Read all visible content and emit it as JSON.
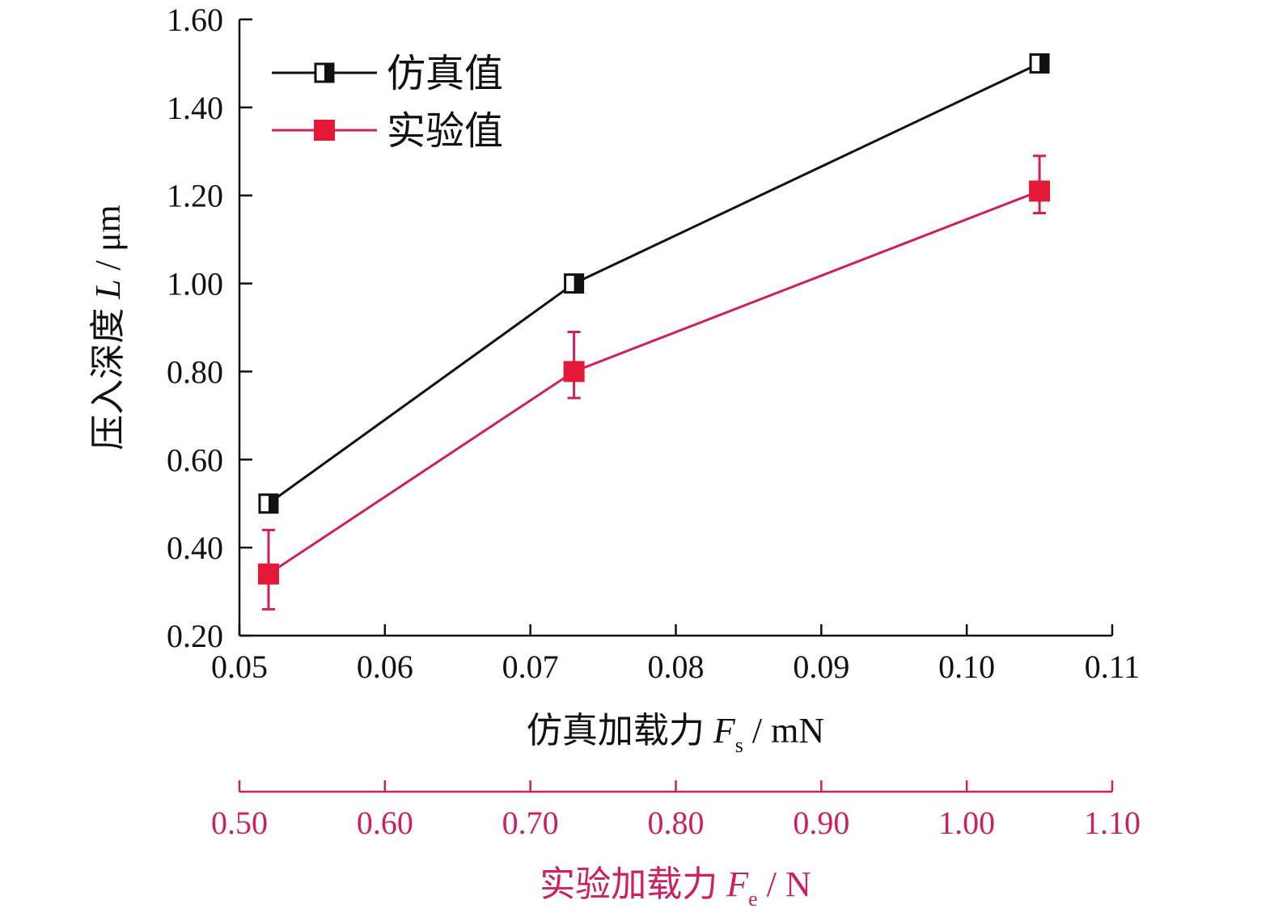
{
  "chart_data": {
    "type": "line",
    "ylabel_prefix": "压入深度 ",
    "ylabel_var": "L",
    "ylabel_unit": " / μm",
    "xlabel_prefix": "仿真加载力 ",
    "xlabel_var": "F",
    "xlabel_sub": "s",
    "xlabel_unit": " / mN",
    "x2label_prefix": "实验加载力 ",
    "x2label_var": "F",
    "x2label_sub": "e",
    "x2label_unit": " / N",
    "xlim": [
      0.05,
      0.11
    ],
    "ylim": [
      0.2,
      1.6
    ],
    "x2lim": [
      0.5,
      1.1
    ],
    "xticks": [
      "0.05",
      "0.06",
      "0.07",
      "0.08",
      "0.09",
      "0.10",
      "0.11"
    ],
    "x2ticks": [
      "0.50",
      "0.60",
      "0.70",
      "0.80",
      "0.90",
      "1.00",
      "1.10"
    ],
    "yticks": [
      "0.20",
      "0.40",
      "0.60",
      "0.80",
      "1.00",
      "1.20",
      "1.40",
      "1.60"
    ],
    "legend_position": "top-left",
    "grid": false,
    "secondary_axis_color": "#cc2060",
    "series": [
      {
        "name": "仿真值",
        "color": "#111111",
        "marker": "half-filled-square",
        "x": [
          0.052,
          0.073,
          0.105
        ],
        "y": [
          0.5,
          1.0,
          1.5
        ]
      },
      {
        "name": "实验值",
        "color": "#e31937",
        "line_color": "#cc2060",
        "marker": "filled-square",
        "x": [
          0.052,
          0.073,
          0.105
        ],
        "y": [
          0.34,
          0.8,
          1.21
        ],
        "error_upper": [
          0.44,
          0.89,
          1.29
        ],
        "error_lower": [
          0.26,
          0.74,
          1.16
        ]
      }
    ]
  }
}
